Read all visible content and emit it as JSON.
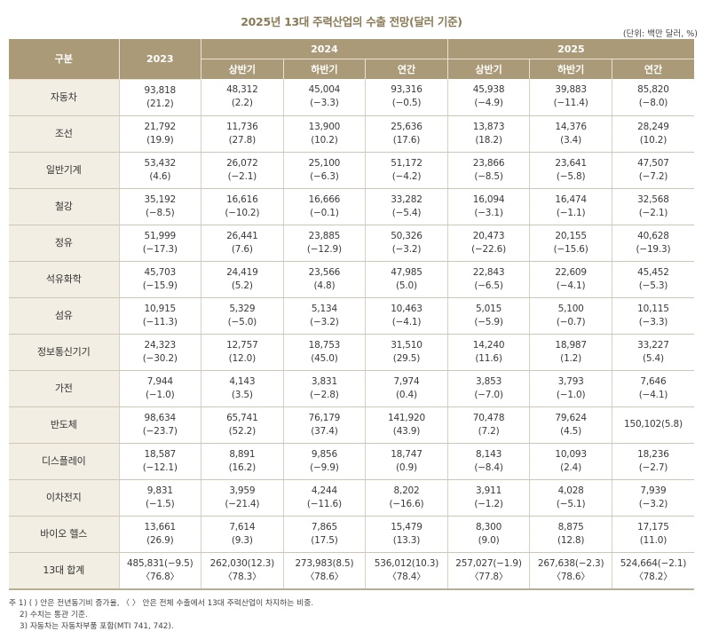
{
  "title": "2025년 13대 주력산업의 수출 전망(달러 기준)",
  "unit": "(단위: 백만 달러, %)",
  "header": {
    "category": "구분",
    "y2023": "2023",
    "y2024": "2024",
    "y2025": "2025",
    "sub": [
      "상반기",
      "하반기",
      "연간",
      "상반기",
      "하반기",
      "연간"
    ]
  },
  "rows": [
    {
      "label": "자동차",
      "cells": [
        [
          "93,818",
          "(21.2)"
        ],
        [
          "48,312",
          "(2.2)"
        ],
        [
          "45,004",
          "(−3.3)"
        ],
        [
          "93,316",
          "(−0.5)"
        ],
        [
          "45,938",
          "(−4.9)"
        ],
        [
          "39,883",
          "(−11.4)"
        ],
        [
          "85,820",
          "(−8.0)"
        ]
      ]
    },
    {
      "label": "조선",
      "cells": [
        [
          "21,792",
          "(19.9)"
        ],
        [
          "11,736",
          "(27.8)"
        ],
        [
          "13,900",
          "(10.2)"
        ],
        [
          "25,636",
          "(17.6)"
        ],
        [
          "13,873",
          "(18.2)"
        ],
        [
          "14,376",
          "(3.4)"
        ],
        [
          "28,249",
          "(10.2)"
        ]
      ]
    },
    {
      "label": "일반기계",
      "cells": [
        [
          "53,432",
          "(4.6)"
        ],
        [
          "26,072",
          "(−2.1)"
        ],
        [
          "25,100",
          "(−6.3)"
        ],
        [
          "51,172",
          "(−4.2)"
        ],
        [
          "23,866",
          "(−8.5)"
        ],
        [
          "23,641",
          "(−5.8)"
        ],
        [
          "47,507",
          "(−7.2)"
        ]
      ]
    },
    {
      "label": "철강",
      "cells": [
        [
          "35,192",
          "(−8.5)"
        ],
        [
          "16,616",
          "(−10.2)"
        ],
        [
          "16,666",
          "(−0.1)"
        ],
        [
          "33,282",
          "(−5.4)"
        ],
        [
          "16,094",
          "(−3.1)"
        ],
        [
          "16,474",
          "(−1.1)"
        ],
        [
          "32,568",
          "(−2.1)"
        ]
      ]
    },
    {
      "label": "정유",
      "cells": [
        [
          "51,999",
          "(−17.3)"
        ],
        [
          "26,441",
          "(7.6)"
        ],
        [
          "23,885",
          "(−12.9)"
        ],
        [
          "50,326",
          "(−3.2)"
        ],
        [
          "20,473",
          "(−22.6)"
        ],
        [
          "20,155",
          "(−15.6)"
        ],
        [
          "40,628",
          "(−19.3)"
        ]
      ]
    },
    {
      "label": "석유화학",
      "cells": [
        [
          "45,703",
          "(−15.9)"
        ],
        [
          "24,419",
          "(5.2)"
        ],
        [
          "23,566",
          "(4.8)"
        ],
        [
          "47,985",
          "(5.0)"
        ],
        [
          "22,843",
          "(−6.5)"
        ],
        [
          "22,609",
          "(−4.1)"
        ],
        [
          "45,452",
          "(−5.3)"
        ]
      ]
    },
    {
      "label": "섬유",
      "cells": [
        [
          "10,915",
          "(−11.3)"
        ],
        [
          "5,329",
          "(−5.0)"
        ],
        [
          "5,134",
          "(−3.2)"
        ],
        [
          "10,463",
          "(−4.1)"
        ],
        [
          "5,015",
          "(−5.9)"
        ],
        [
          "5,100",
          "(−0.7)"
        ],
        [
          "10,115",
          "(−3.3)"
        ]
      ]
    },
    {
      "label": "정보통신기기",
      "cells": [
        [
          "24,323",
          "(−30.2)"
        ],
        [
          "12,757",
          "(12.0)"
        ],
        [
          "18,753",
          "(45.0)"
        ],
        [
          "31,510",
          "(29.5)"
        ],
        [
          "14,240",
          "(11.6)"
        ],
        [
          "18,987",
          "(1.2)"
        ],
        [
          "33,227",
          "(5.4)"
        ]
      ]
    },
    {
      "label": "가전",
      "cells": [
        [
          "7,944",
          "(−1.0)"
        ],
        [
          "4,143",
          "(3.5)"
        ],
        [
          "3,831",
          "(−2.8)"
        ],
        [
          "7,974",
          "(0.4)"
        ],
        [
          "3,853",
          "(−7.0)"
        ],
        [
          "3,793",
          "(−1.0)"
        ],
        [
          "7,646",
          "(−4.1)"
        ]
      ]
    },
    {
      "label": "반도체",
      "cells": [
        [
          "98,634",
          "(−23.7)"
        ],
        [
          "65,741",
          "(52.2)"
        ],
        [
          "76,179",
          "(37.4)"
        ],
        [
          "141,920",
          "(43.9)"
        ],
        [
          "70,478",
          "(7.2)"
        ],
        [
          "79,624",
          "(4.5)"
        ],
        [
          "150,102(5.8)",
          ""
        ]
      ]
    },
    {
      "label": "디스플레이",
      "cells": [
        [
          "18,587",
          "(−12.1)"
        ],
        [
          "8,891",
          "(16.2)"
        ],
        [
          "9,856",
          "(−9.9)"
        ],
        [
          "18,747",
          "(0.9)"
        ],
        [
          "8,143",
          "(−8.4)"
        ],
        [
          "10,093",
          "(2.4)"
        ],
        [
          "18,236",
          "(−2.7)"
        ]
      ]
    },
    {
      "label": "이차전지",
      "cells": [
        [
          "9,831",
          "(−1.5)"
        ],
        [
          "3,959",
          "(−21.4)"
        ],
        [
          "4,244",
          "(−11.6)"
        ],
        [
          "8,202",
          "(−16.6)"
        ],
        [
          "3,911",
          "(−1.2)"
        ],
        [
          "4,028",
          "(−5.1)"
        ],
        [
          "7,939",
          "(−3.2)"
        ]
      ]
    },
    {
      "label": "바이오 헬스",
      "cells": [
        [
          "13,661",
          "(26.9)"
        ],
        [
          "7,614",
          "(9.3)"
        ],
        [
          "7,865",
          "(17.5)"
        ],
        [
          "15,479",
          "(13.3)"
        ],
        [
          "8,300",
          "(9.0)"
        ],
        [
          "8,875",
          "(12.8)"
        ],
        [
          "17,175",
          "(11.0)"
        ]
      ]
    },
    {
      "label": "13대 합계",
      "cells": [
        [
          "485,831(−9.5)",
          "〈76.8〉"
        ],
        [
          "262,030(12.3)",
          "〈78.3〉"
        ],
        [
          "273,983(8.5)",
          "〈78.6〉"
        ],
        [
          "536,012(10.3)",
          "〈78.4〉"
        ],
        [
          "257,027(−1.9)",
          "〈77.8〉"
        ],
        [
          "267,638(−2.3)",
          "〈78.6〉"
        ],
        [
          "524,664(−2.1)",
          "〈78.2〉"
        ]
      ]
    }
  ],
  "notes": [
    "주 1) ( ) 안은 전년동기비 증가율, 〈 〉 안은 전체 수출에서 13대 주력산업이 차지하는 비중.",
    "2) 수치는 통관 기준.",
    "3) 자동차는 자동차부품 포함(MTI 741, 742)."
  ]
}
